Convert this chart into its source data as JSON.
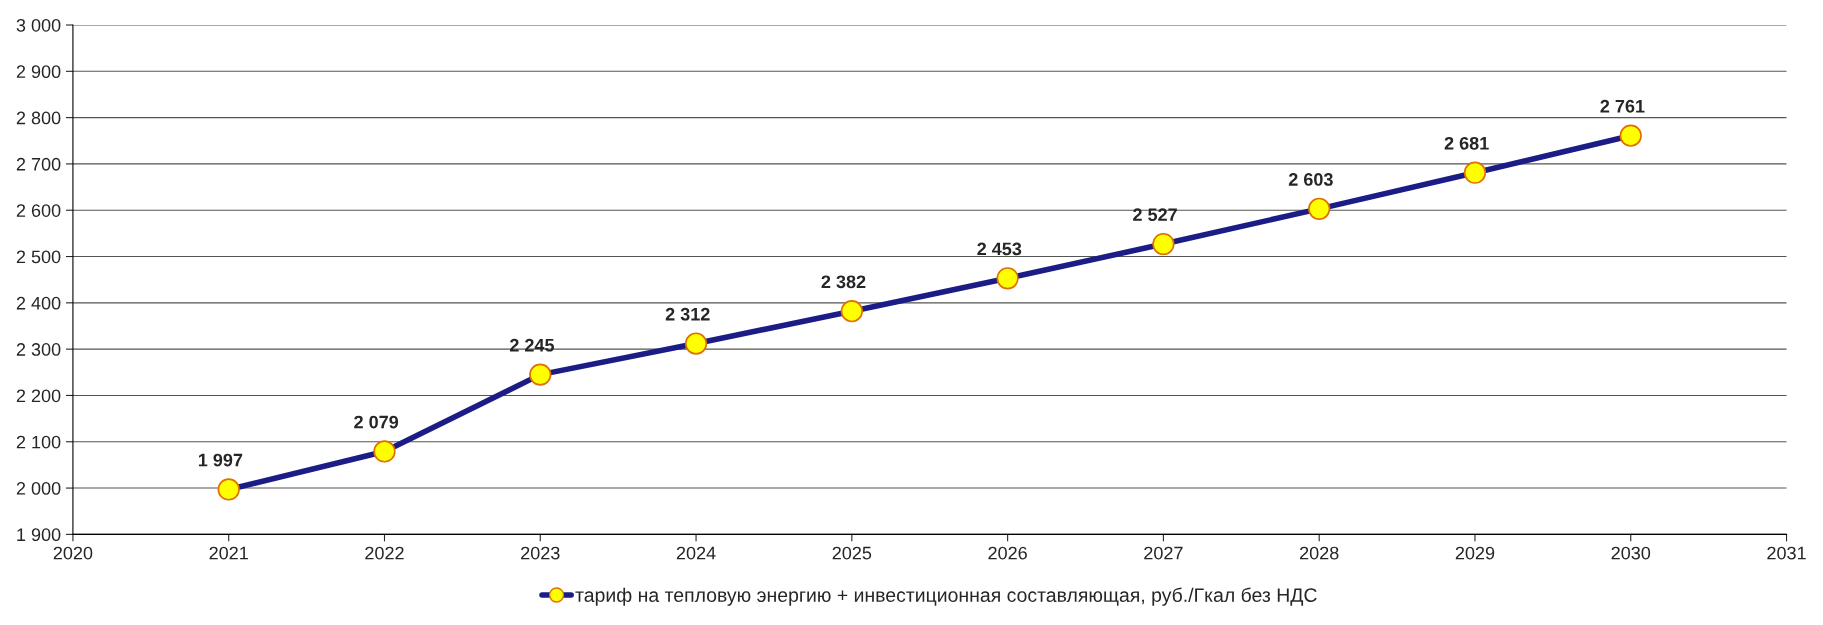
{
  "chart_data": {
    "type": "line",
    "x": [
      2021,
      2022,
      2023,
      2024,
      2025,
      2026,
      2027,
      2028,
      2029,
      2030
    ],
    "series": [
      {
        "name": "тариф на тепловую энергию + инвестиционная составляющая, руб./Гкал без НДС",
        "color": "#1c1c86",
        "values": [
          1997,
          2079,
          2245,
          2312,
          2382,
          2453,
          2527,
          2603,
          2681,
          2761
        ],
        "value_labels": [
          "1 997",
          "2 079",
          "2 245",
          "2 312",
          "2 382",
          "2 453",
          "2 527",
          "2 603",
          "2 681",
          "2 761"
        ]
      }
    ],
    "xlim": [
      2020,
      2031
    ],
    "xticks": [
      2020,
      2021,
      2022,
      2023,
      2024,
      2025,
      2026,
      2027,
      2028,
      2029,
      2030,
      2031
    ],
    "ylim": [
      1900,
      3000
    ],
    "yticks": [
      {
        "value": 1900,
        "label": "1 900"
      },
      {
        "value": 2000,
        "label": "2 000"
      },
      {
        "value": 2100,
        "label": "2 100"
      },
      {
        "value": 2200,
        "label": "2 200"
      },
      {
        "value": 2300,
        "label": "2 300"
      },
      {
        "value": 2400,
        "label": "2 400"
      },
      {
        "value": 2500,
        "label": "2 500"
      },
      {
        "value": 2600,
        "label": "2 600"
      },
      {
        "value": 2700,
        "label": "2 700"
      },
      {
        "value": 2800,
        "label": "2 800"
      },
      {
        "value": 2900,
        "label": "2 900"
      },
      {
        "value": 3000,
        "label": "3 000"
      }
    ],
    "grid": "y",
    "legend": "bottom",
    "marker": "circle",
    "line_style": "solid"
  }
}
